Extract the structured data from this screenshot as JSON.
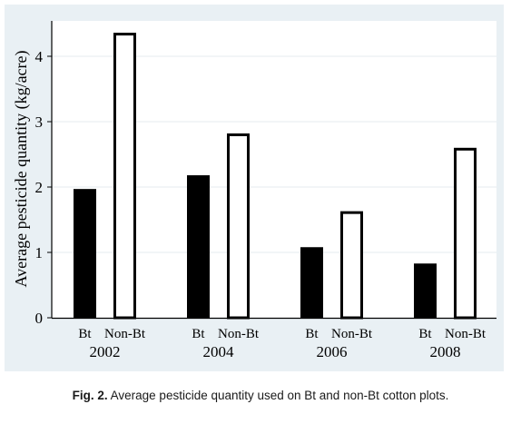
{
  "chart_data": {
    "type": "bar",
    "title": "",
    "ylabel": "Average pesticide quantity (kg/acre)",
    "xlabel": "",
    "ylim": [
      0,
      4.5
    ],
    "yticks": [
      "0",
      "1",
      "2",
      "3",
      "4"
    ],
    "categories": [
      "2002",
      "2004",
      "2006",
      "2008"
    ],
    "series": [
      {
        "name": "Bt",
        "values": [
          1.97,
          2.18,
          1.08,
          0.83
        ],
        "color": "#000000",
        "fill": "#000000"
      },
      {
        "name": "Non-Bt",
        "values": [
          4.36,
          2.82,
          1.63,
          2.6
        ],
        "color": "#000000",
        "fill": "#ffffff"
      }
    ],
    "grid": true,
    "legend": "none"
  },
  "caption": {
    "label": "Fig. 2.",
    "text": "Average pesticide quantity used on Bt and non-Bt cotton plots."
  },
  "colors": {
    "panel_background": "#e9f0f4",
    "plot_background": "#ffffff",
    "gridline": "#e4ebef"
  }
}
